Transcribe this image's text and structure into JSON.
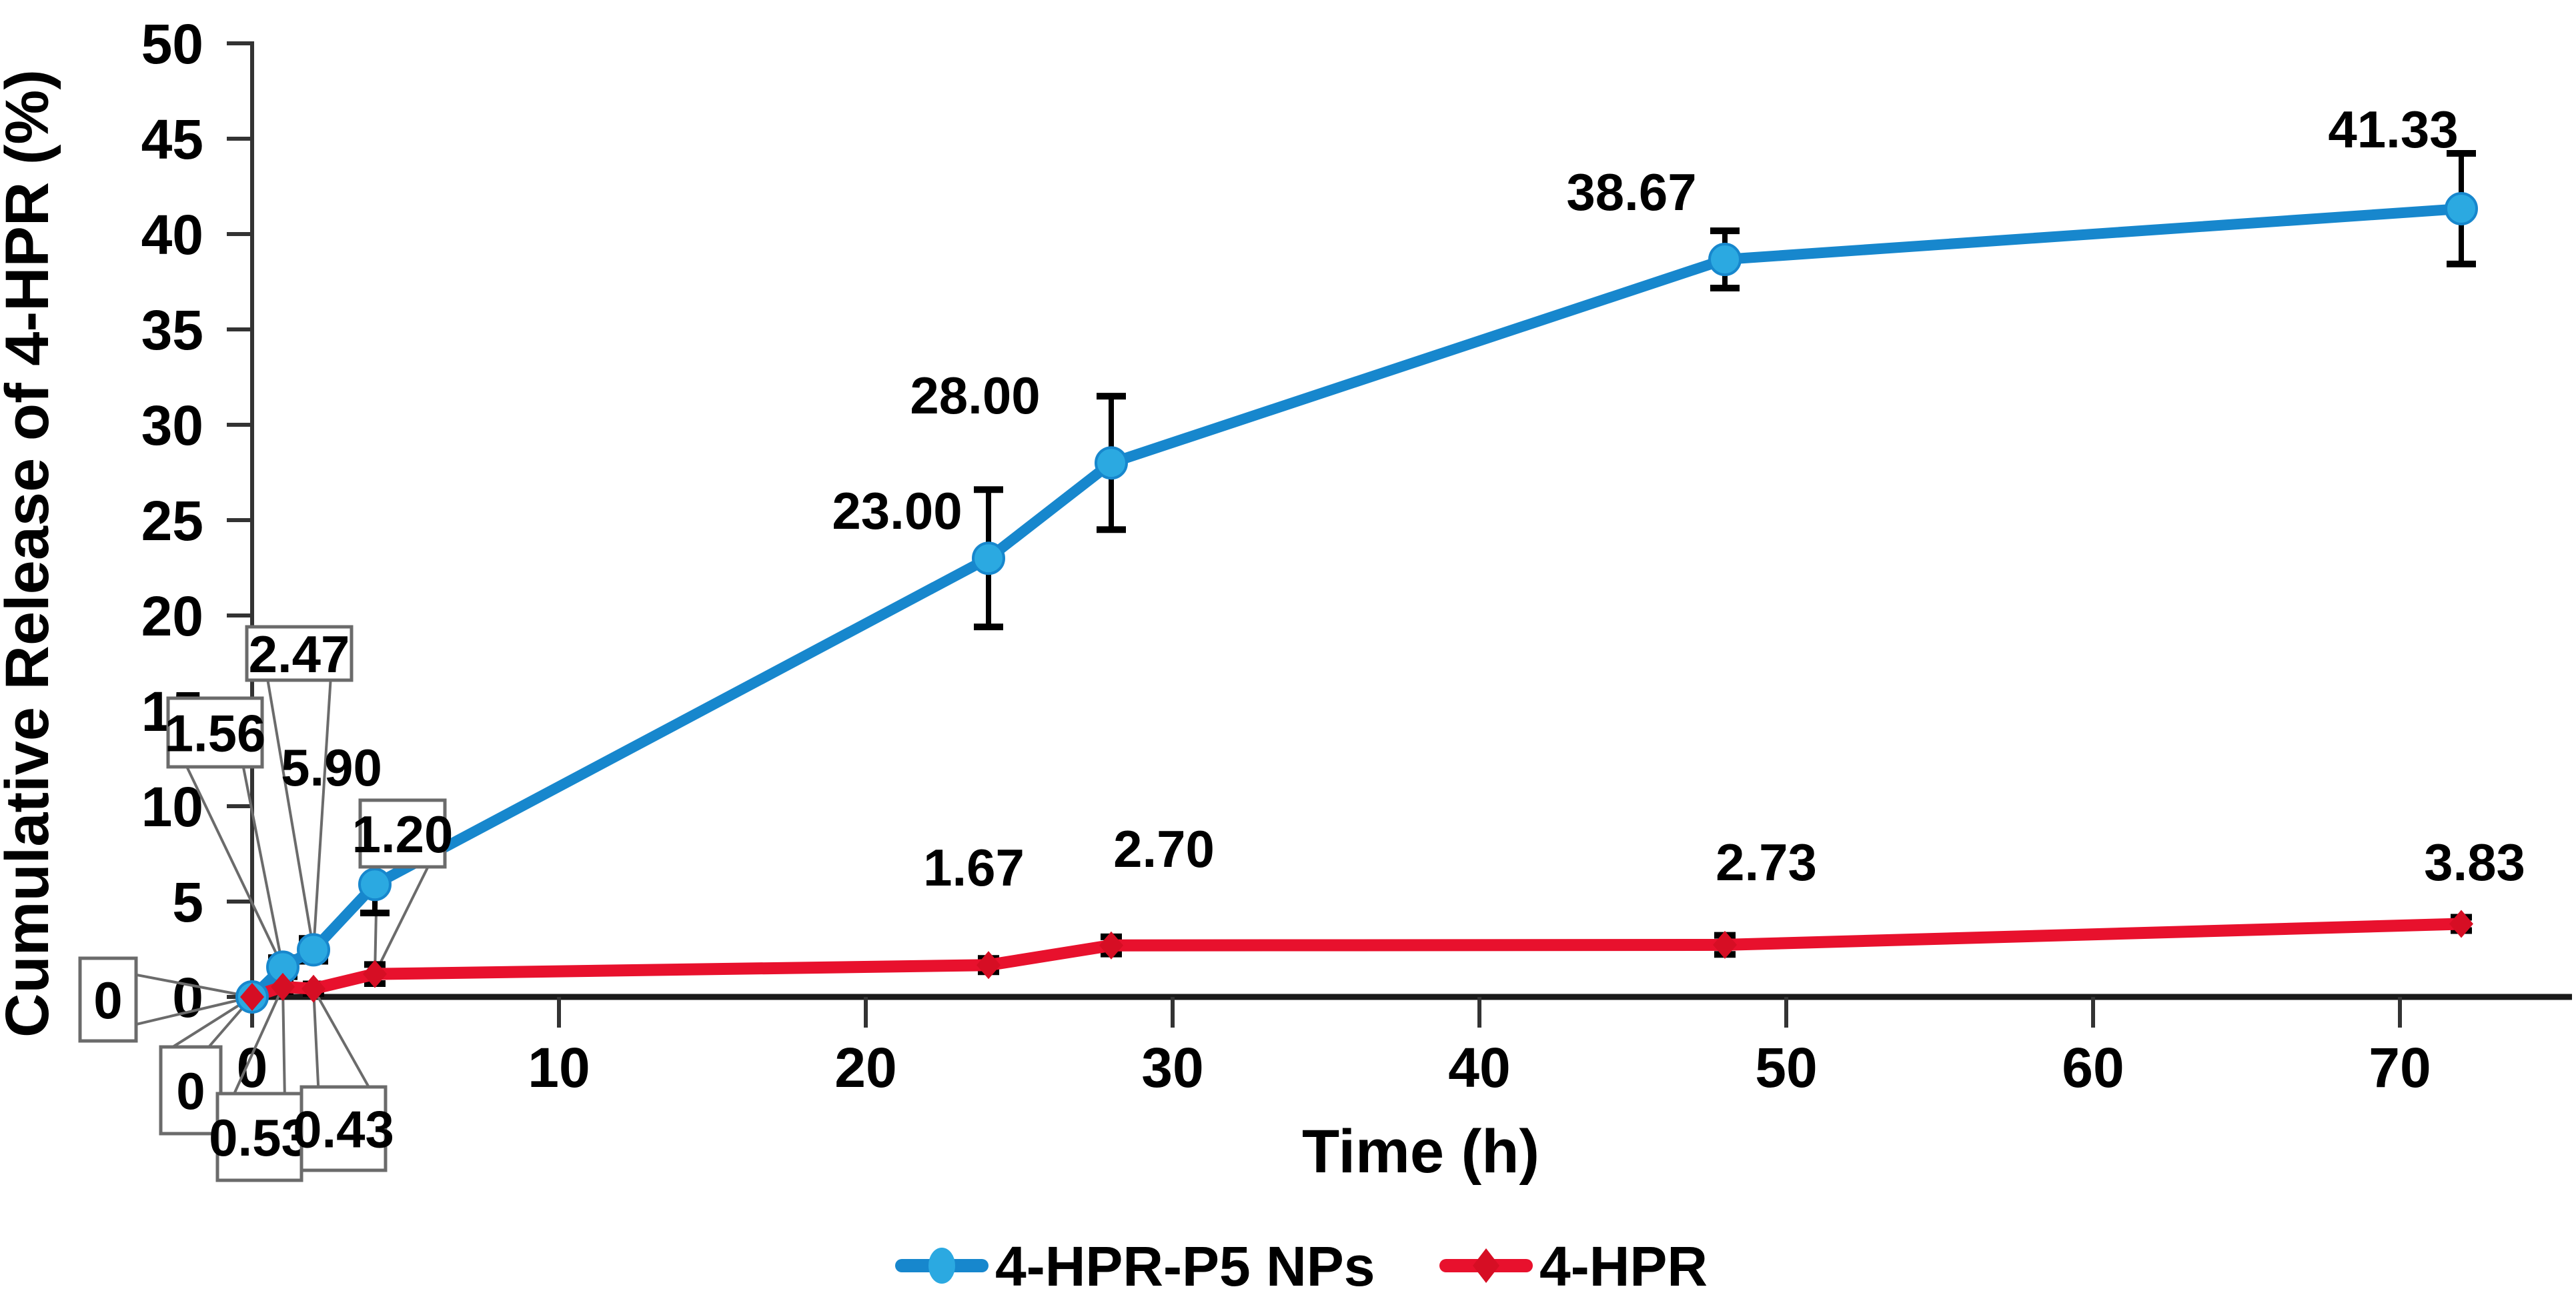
{
  "chart_data": {
    "type": "line",
    "title": "",
    "xlabel": "Time (h)",
    "ylabel": "Cumulative Release of 4-HPR (%)",
    "x_ticks": [
      0,
      10,
      20,
      30,
      40,
      50,
      60,
      70
    ],
    "y_ticks": [
      0,
      5,
      10,
      15,
      20,
      25,
      30,
      35,
      40,
      45,
      50
    ],
    "xlim": [
      0,
      75.6
    ],
    "ylim": [
      0,
      50
    ],
    "grid": false,
    "legend_position": "bottom-center",
    "x": [
      0,
      1,
      2,
      4,
      24,
      28,
      48,
      72
    ],
    "series": [
      {
        "name": "4-HPR-P5 NPs",
        "marker": "circle",
        "line_color": "#1787CD",
        "marker_color": "#2BA9E1",
        "label_color": "#0D72B9",
        "values": [
          0,
          1.56,
          2.47,
          5.9,
          23.0,
          28.0,
          38.67,
          41.33
        ],
        "errors": [
          0,
          0.5,
          0.6,
          1.5,
          3.6,
          3.5,
          1.5,
          2.9
        ],
        "labels": [
          "0",
          "1.56",
          "2.47",
          "5.90",
          "23.00",
          "28.00",
          "38.67",
          "41.33"
        ],
        "label_boxed": [
          true,
          true,
          true,
          false,
          false,
          false,
          false,
          false
        ]
      },
      {
        "name": "4-HPR",
        "marker": "diamond",
        "line_color": "#E8112D",
        "marker_color": "#D60E24",
        "label_color": "#EC1C24",
        "values": [
          0,
          0.53,
          0.43,
          1.2,
          1.67,
          2.7,
          2.73,
          3.83
        ],
        "errors": [
          0,
          0.25,
          0.25,
          0.5,
          0.35,
          0.45,
          0.5,
          0.35
        ],
        "labels": [
          "0",
          "0.53",
          "0.43",
          "1.20",
          "1.67",
          "2.70",
          "2.73",
          "3.83"
        ],
        "label_boxed": [
          true,
          true,
          true,
          true,
          false,
          false,
          false,
          false
        ]
      }
    ],
    "error_bar_color": "#000000",
    "axis_color": "#1a1a1a",
    "callout_border_color": "#6b6b6b",
    "callout_fill": "#ffffff",
    "layout_hints": {
      "boxed_label_rects": {
        "s0_p0": {
          "x": 120,
          "y": 1437,
          "w": 84,
          "h": 124
        },
        "s0_p1": {
          "x": 252,
          "y": 1047,
          "w": 141,
          "h": 103
        },
        "s0_p2": {
          "x": 370,
          "y": 940,
          "w": 157,
          "h": 80
        },
        "s1_p0": {
          "x": 241,
          "y": 1570,
          "w": 90,
          "h": 130
        },
        "s1_p1": {
          "x": 326,
          "y": 1640,
          "w": 126,
          "h": 130
        },
        "s1_p2": {
          "x": 452,
          "y": 1630,
          "w": 126,
          "h": 125
        },
        "s1_p3": {
          "x": 540,
          "y": 1200,
          "w": 127,
          "h": 100
        }
      },
      "plain_label_centers": {
        "s0_p3": {
          "cx": 497,
          "cy": 1150
        },
        "s0_p4": {
          "cx": 1345,
          "cy": 765
        },
        "s0_p5": {
          "cx": 1462,
          "cy": 592
        },
        "s0_p6": {
          "cx": 2446,
          "cy": 287
        },
        "s0_p7": {
          "cx": 3588,
          "cy": 193
        },
        "s1_p4": {
          "cx": 1460,
          "cy": 1300
        },
        "s1_p5": {
          "cx": 1745,
          "cy": 1272
        },
        "s1_p6": {
          "cx": 2648,
          "cy": 1292
        },
        "s1_p7": {
          "cx": 3710,
          "cy": 1292
        }
      }
    }
  }
}
